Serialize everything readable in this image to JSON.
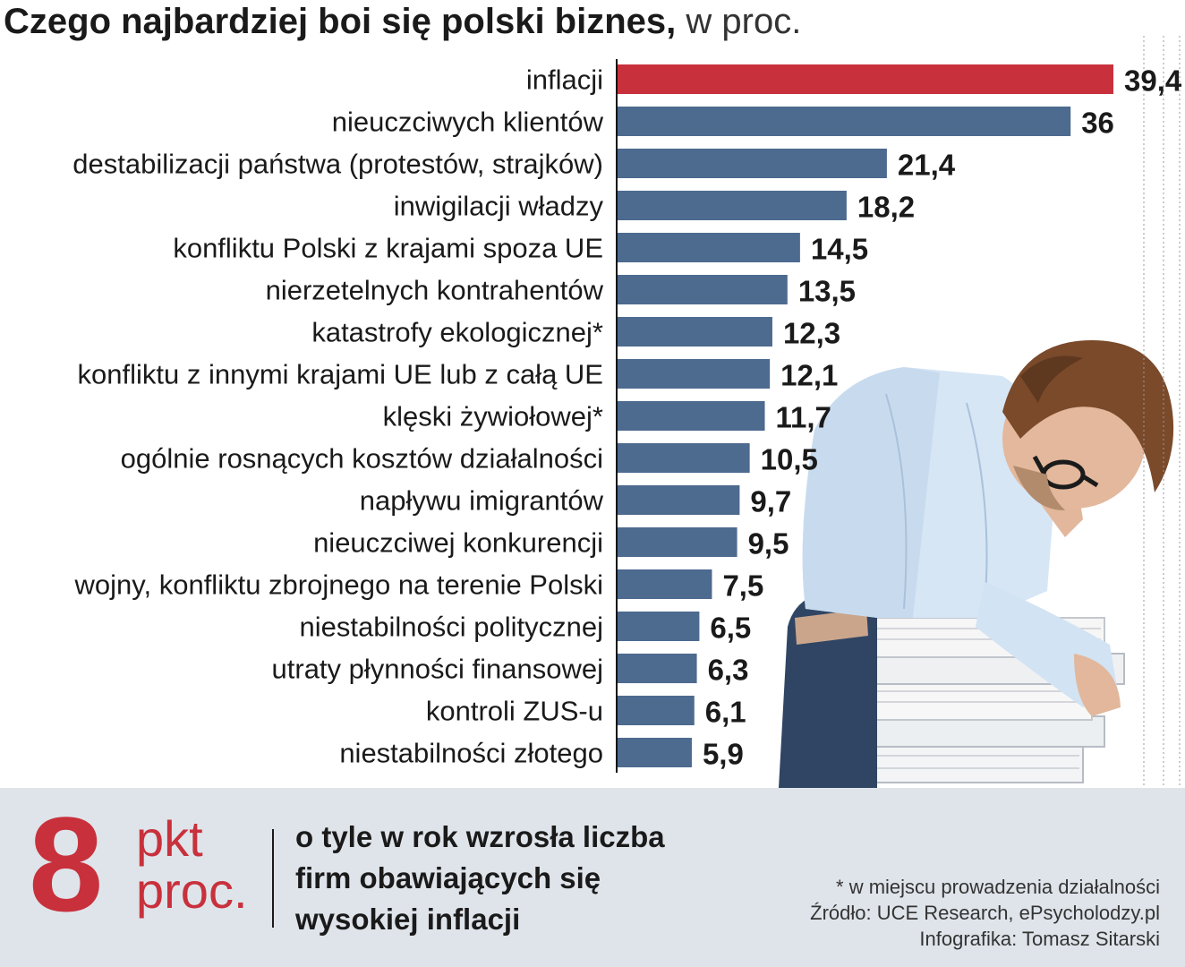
{
  "header": {
    "title_bold": "Czego najbardziej boi się polski biznes,",
    "title_light": " w proc."
  },
  "chart_data": {
    "type": "bar",
    "orientation": "horizontal",
    "title": "Czego najbardziej boi się polski biznes, w proc.",
    "categories": [
      "inflacji",
      "nieuczciwych klientów",
      "destabilizacji państwa (protestów, strajków)",
      "inwigilacji władzy",
      "konfliktu Polski z krajami spoza UE",
      "nierzetelnych kontrahentów",
      "katastrofy ekologicznej*",
      "konfliktu z innymi krajami UE lub z całą UE",
      "klęski żywiołowej*",
      "ogólnie rosnących kosztów działalności",
      "napływu imigrantów",
      "nieuczciwej konkurencji",
      "wojny, konfliktu zbrojnego na terenie Polski",
      "niestabilności politycznej",
      "utraty płynności finansowej",
      "kontroli ZUS-u",
      "niestabilności złotego"
    ],
    "values": [
      39.4,
      36,
      21.4,
      18.2,
      14.5,
      13.5,
      12.3,
      12.1,
      11.7,
      10.5,
      9.7,
      9.5,
      7.5,
      6.5,
      6.3,
      6.1,
      5.9
    ],
    "value_labels": [
      "39,4",
      "36",
      "21,4",
      "18,2",
      "14,5",
      "13,5",
      "12,3",
      "12,1",
      "11,7",
      "10,5",
      "9,7",
      "9,5",
      "7,5",
      "6,5",
      "6,3",
      "6,1",
      "5,9"
    ],
    "highlight_index": 0,
    "colors": {
      "highlight": "#c8313c",
      "bar": "#4d6a8f",
      "axis_line": "#111111",
      "gridline": "#999999"
    },
    "xlim": [
      0,
      39.4
    ]
  },
  "footer": {
    "big_number": "8",
    "unit_line1": "pkt",
    "unit_line2": "proc.",
    "statement": "o tyle w rok wzrosła liczba firm obawiających się wysokiej inflacji",
    "footnote": "* w miejscu prowadzenia działalności",
    "source": "Źródło: UCE Research, ePsycholodzy.pl",
    "credit": "Infografika: Tomasz Sitarski"
  }
}
